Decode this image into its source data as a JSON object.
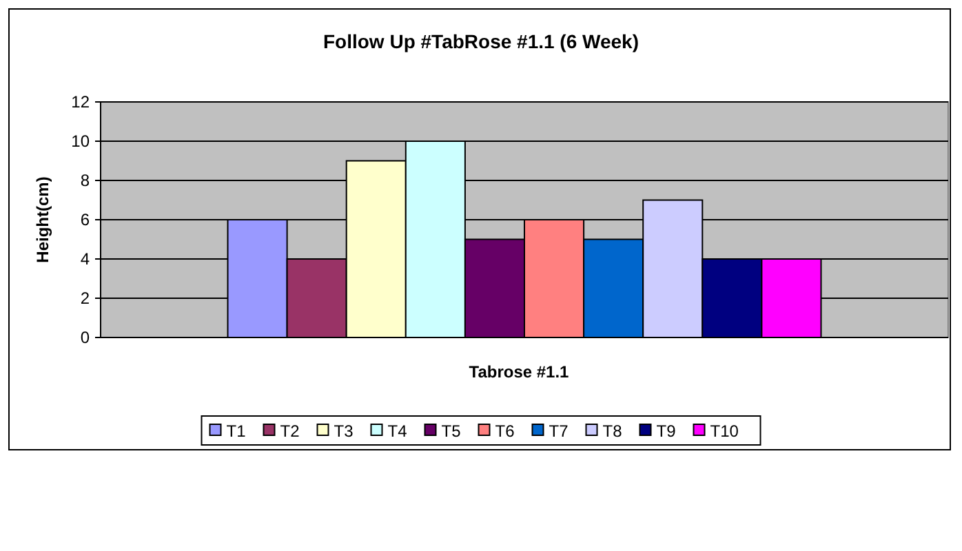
{
  "chart_data": {
    "type": "bar",
    "title": "Follow Up #TabRose #1.1 (6 Week)",
    "xlabel": "Tabrose #1.1",
    "ylabel": "Height(cm)",
    "categories": [
      null
    ],
    "series": [
      {
        "name": "T1",
        "color": "#9999ff",
        "values": [
          6
        ]
      },
      {
        "name": "T2",
        "color": "#993366",
        "values": [
          4
        ]
      },
      {
        "name": "T3",
        "color": "#ffffcc",
        "values": [
          9
        ]
      },
      {
        "name": "T4",
        "color": "#ccffff",
        "values": [
          10
        ]
      },
      {
        "name": "T5",
        "color": "#660066",
        "values": [
          5
        ]
      },
      {
        "name": "T6",
        "color": "#ff8080",
        "values": [
          6
        ]
      },
      {
        "name": "T7",
        "color": "#0066cc",
        "values": [
          5
        ]
      },
      {
        "name": "T8",
        "color": "#ccccff",
        "values": [
          7
        ]
      },
      {
        "name": "T9",
        "color": "#000080",
        "values": [
          4
        ]
      },
      {
        "name": "T10",
        "color": "#ff00ff",
        "values": [
          4
        ]
      }
    ],
    "ylim": [
      0,
      12
    ],
    "yticks": [
      0,
      2,
      4,
      6,
      8,
      10,
      12
    ],
    "grid": "y",
    "legend": "bottom"
  }
}
